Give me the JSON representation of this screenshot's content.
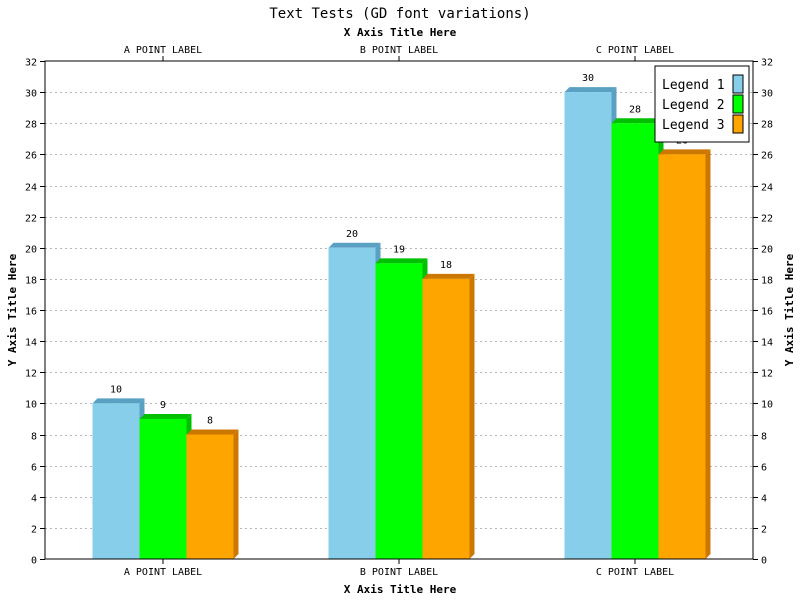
{
  "chart_data": {
    "type": "bar",
    "title": "Text Tests (GD font variations)",
    "xlabel": "X Axis Title Here",
    "ylabel": "Y Axis Title Here",
    "categories": [
      "A POINT LABEL",
      "B POINT LABEL",
      "C POINT LABEL"
    ],
    "series": [
      {
        "name": "Legend 1",
        "values": [
          10,
          20,
          30
        ],
        "color": "#87ceeb",
        "side_color": "#5aa0c2"
      },
      {
        "name": "Legend 2",
        "values": [
          9,
          19,
          28
        ],
        "color": "#00ff00",
        "side_color": "#00c000"
      },
      {
        "name": "Legend 3",
        "values": [
          8,
          18,
          26
        ],
        "color": "#ffa500",
        "side_color": "#cc7800"
      }
    ],
    "ylim": [
      0,
      32
    ],
    "yticks": [
      "0",
      "2",
      "4",
      "6",
      "8",
      "10",
      "12",
      "14",
      "16",
      "18",
      "20",
      "22",
      "24",
      "26",
      "28",
      "30",
      "32"
    ],
    "grid": true,
    "legend_position": "top-right"
  }
}
